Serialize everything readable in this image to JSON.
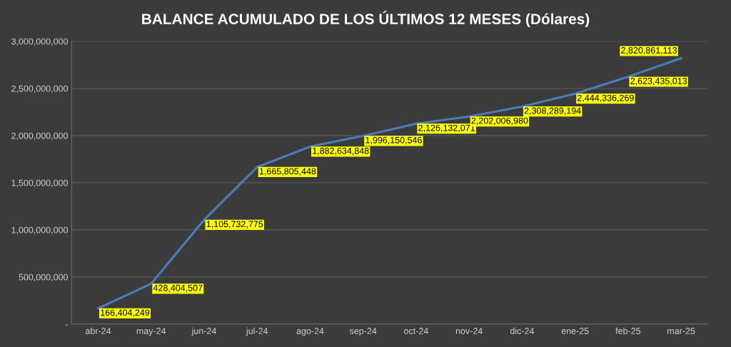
{
  "chart_data": {
    "type": "line",
    "title": "BALANCE ACUMULADO DE LOS ÚLTIMOS 12 MESES (Dólares)",
    "categories": [
      "abr-24",
      "may-24",
      "jun-24",
      "jul-24",
      "ago-24",
      "sep-24",
      "oct-24",
      "nov-24",
      "dic-24",
      "ene-25",
      "feb-25",
      "mar-25"
    ],
    "series": [
      {
        "color": "#4a7ebb",
        "values": [
          166404249,
          428404507,
          1105732775,
          1665805448,
          1882634848,
          1996150546,
          2126132071,
          2202006980,
          2308289194,
          2444336269,
          2623435013,
          2820861113
        ],
        "value_labels": [
          "166,404,249",
          "428,404,507",
          "1,105,732,775",
          "1,665,805,448",
          "1,882,634,848",
          "1,996,150,546",
          "2,126,132,071",
          "2,202,006,980",
          "2,308,289,194",
          "2,444,336,269",
          "2,623,435,013",
          "2,820,861,113"
        ]
      }
    ],
    "ylim": [
      0,
      3000000000
    ],
    "yticks": [
      {
        "value": 0,
        "label": "-"
      },
      {
        "value": 500000000,
        "label": "500,000,000"
      },
      {
        "value": 1000000000,
        "label": "1,000,000,000"
      },
      {
        "value": 1500000000,
        "label": "1,500,000,000"
      },
      {
        "value": 2000000000,
        "label": "2,000,000,000"
      },
      {
        "value": 2500000000,
        "label": "2,500,000,000"
      },
      {
        "value": 3000000000,
        "label": "3,000,000,000"
      }
    ],
    "grid": "y",
    "marker": "none",
    "line_style": "solid",
    "legend": false
  }
}
